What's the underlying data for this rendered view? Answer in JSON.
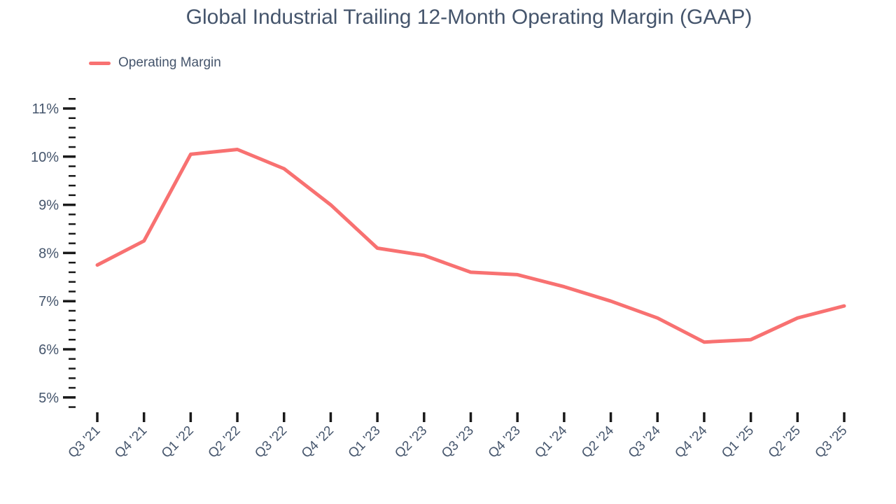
{
  "colors": {
    "line": "#F87171",
    "text": "#45556C",
    "tick": "#1A1A1A",
    "background": "#FFFFFF"
  },
  "chart_data": {
    "type": "line",
    "title": "Global Industrial Trailing 12-Month Operating Margin (GAAP)",
    "xlabel": "",
    "ylabel": "",
    "categories": [
      "Q3 '21",
      "Q4 '21",
      "Q1 '22",
      "Q2 '22",
      "Q3 '22",
      "Q4 '22",
      "Q1 '23",
      "Q2 '23",
      "Q3 '23",
      "Q4 '23",
      "Q1 '24",
      "Q2 '24",
      "Q3 '24",
      "Q4 '24",
      "Q1 '25",
      "Q2 '25",
      "Q3 '25"
    ],
    "series": [
      {
        "name": "Operating Margin",
        "values": [
          7.75,
          8.25,
          10.05,
          10.15,
          9.75,
          9.0,
          8.1,
          7.95,
          7.6,
          7.55,
          7.3,
          7.0,
          6.65,
          6.15,
          6.2,
          6.65,
          6.9
        ],
        "color": "#F87171"
      }
    ],
    "y_tick_labels": [
      "5%",
      "6%",
      "7%",
      "8%",
      "9%",
      "10%",
      "11%"
    ],
    "y_ticks": [
      5,
      6,
      7,
      8,
      9,
      10,
      11
    ],
    "y_minor_tick_step": 0.2,
    "ylim": [
      4.8,
      11.2
    ],
    "y_unit": "%",
    "grid": false,
    "legend_position": "top-left"
  }
}
